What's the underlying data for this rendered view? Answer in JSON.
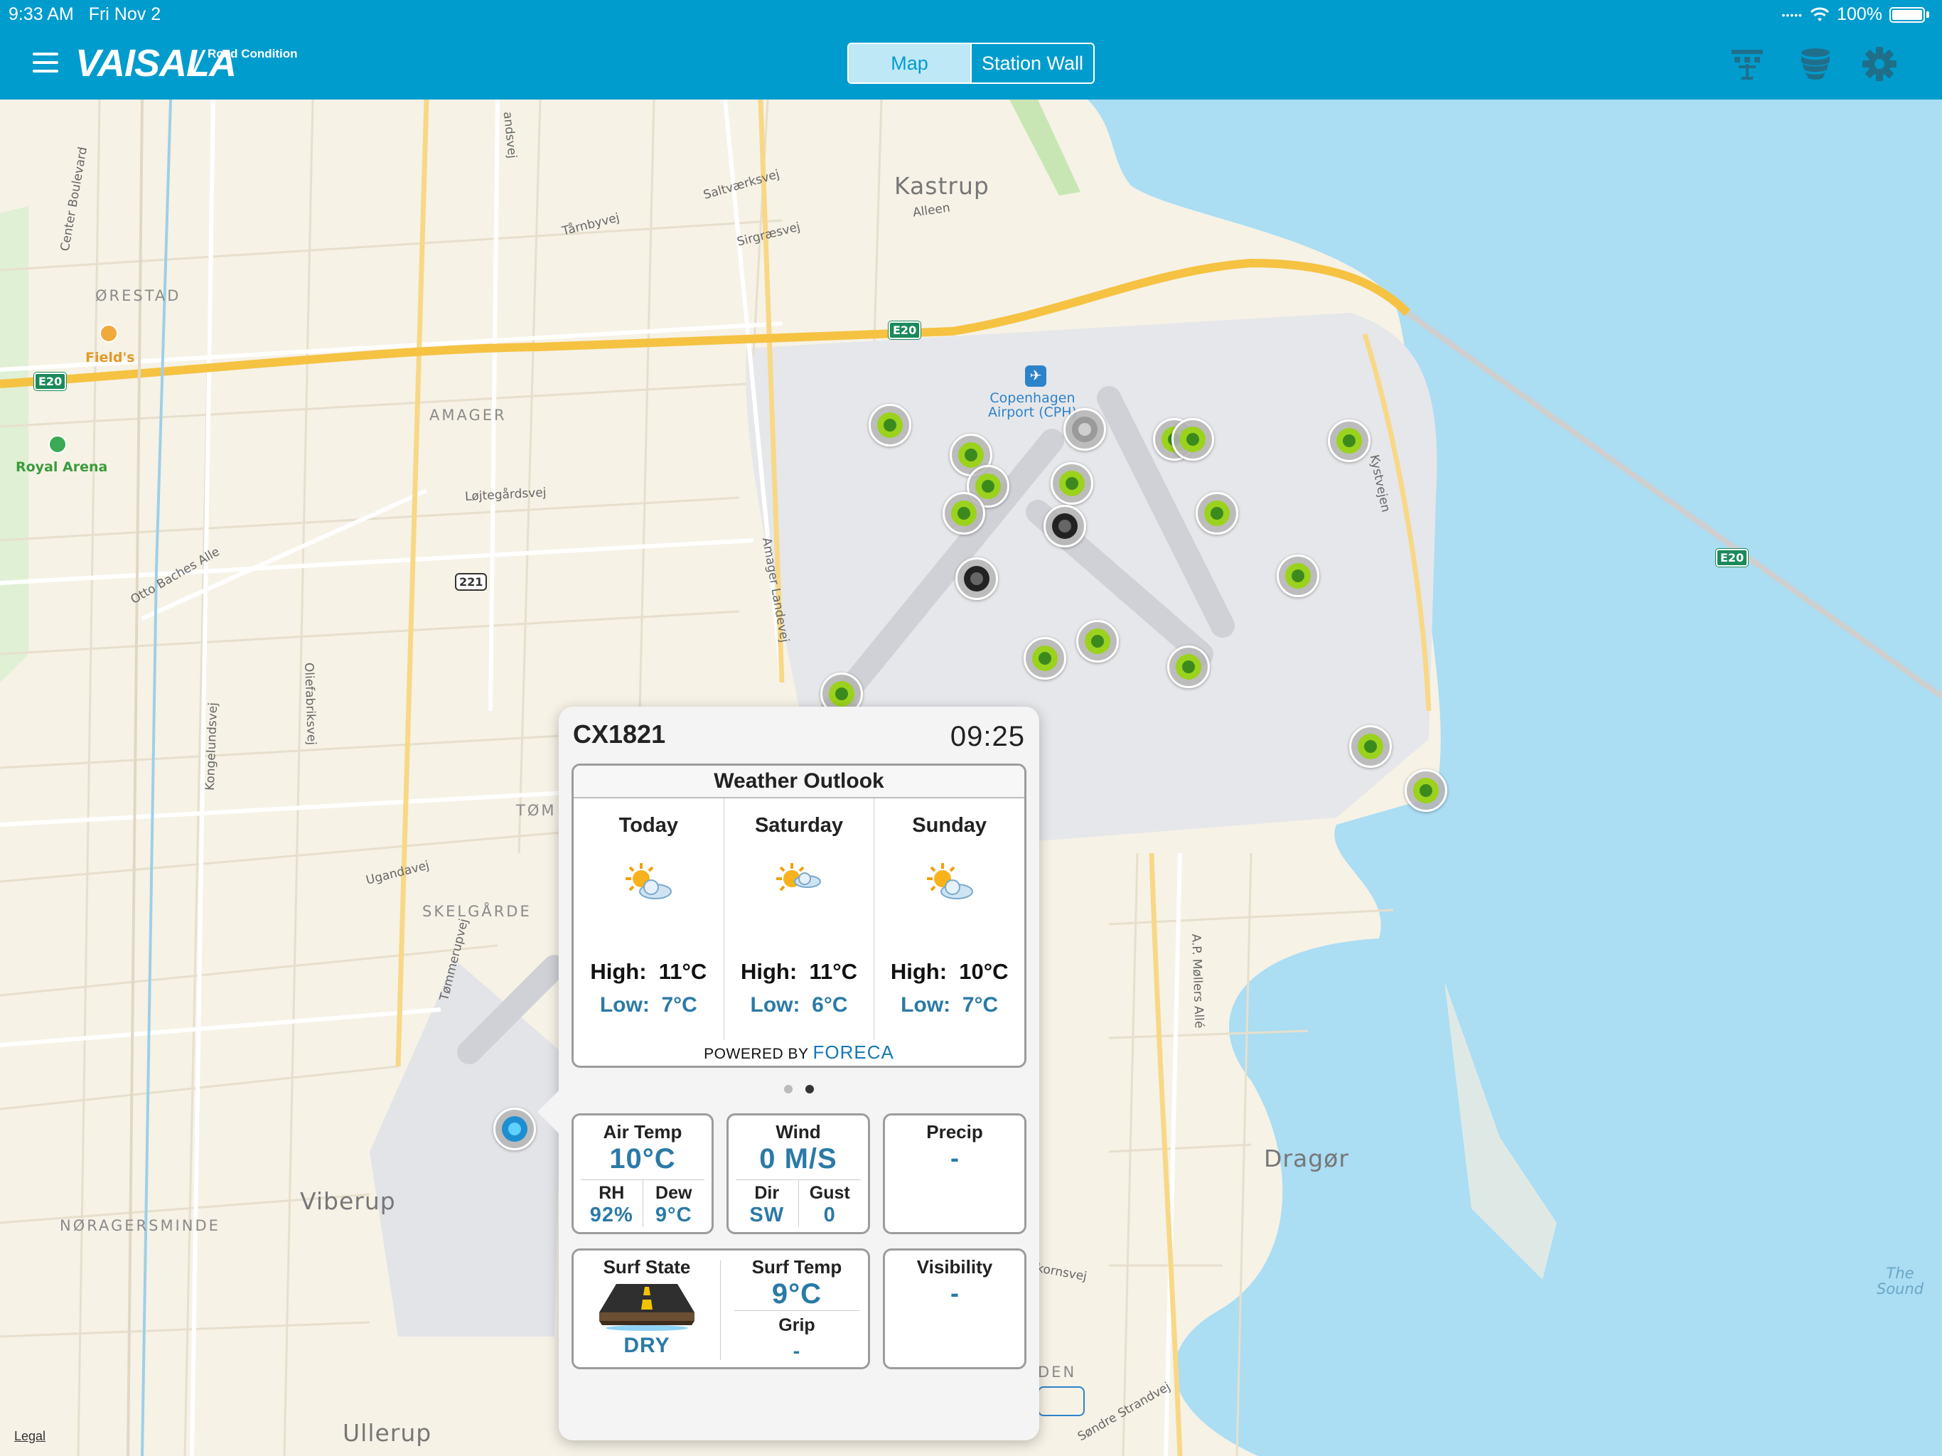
{
  "status_bar": {
    "time": "9:33 AM",
    "date": "Fri Nov 2",
    "battery": "100%"
  },
  "header": {
    "brand": "VAISALA",
    "brand_sub": "Road Condition",
    "tabs": [
      {
        "label": "Map",
        "active": true
      },
      {
        "label": "Station Wall",
        "active": false
      }
    ],
    "icons": [
      "station-network-icon",
      "database-icon",
      "settings-icon"
    ]
  },
  "map": {
    "labels": {
      "kastrup": "Kastrup",
      "alleen": "Alleen",
      "saltvaerksvej": "Saltværksvej",
      "sirgraesvej": "Sirgræsvej",
      "tarnbyvej": "Tårnbyvej",
      "orestad": "ØRESTAD",
      "fields": "Field's",
      "royal_arena": "Royal Arena",
      "amager": "AMAGER",
      "lojtegardsvej": "Løjtegårdsvej",
      "otto_baches": "Otto Baches Alle",
      "center_blvd": "Center Boulevard",
      "amager_landevej": "Amager Landevej",
      "kystvejen": "Kystvejen",
      "airport": "Copenhagen\nAirport (CPH)",
      "oliefabriksvej": "Oliefabriksvej",
      "kongelundsvej": "Kongelundsvej",
      "ugandavej": "Ugandavej",
      "skelgarde": "SKELGÅRDE",
      "tommerupvej": "Tømmerupvej",
      "tom": "TØM",
      "viberup": "Viberup",
      "noragersminde": "NØRAGERSMINDE",
      "ullerup": "Ullerup",
      "dragor": "Dragør",
      "ap_mollers": "A.P. Møllers Allé",
      "the_sound": "The\nSound",
      "kornsvej": "kornsvej",
      "sondre_strandvej": "Søndre Strandvej",
      "den": "DEN",
      "landsvej": "andsvej"
    },
    "shields": {
      "e20_west": "E20",
      "e20_center": "E20",
      "e20_east": "E20",
      "r221": "221"
    },
    "legal": "Legal"
  },
  "popup": {
    "station_id": "CX1821",
    "time": "09:25",
    "outlook": {
      "title": "Weather Outlook",
      "days": [
        {
          "name": "Today",
          "high_label": "High:",
          "high": "11°C",
          "low_label": "Low:",
          "low": "7°C",
          "icon": "partly-cloudy-icon"
        },
        {
          "name": "Saturday",
          "high_label": "High:",
          "high": "11°C",
          "low_label": "Low:",
          "low": "6°C",
          "icon": "partly-cloudy-icon"
        },
        {
          "name": "Sunday",
          "high_label": "High:",
          "high": "10°C",
          "low_label": "Low:",
          "low": "7°C",
          "icon": "partly-cloudy-icon"
        }
      ],
      "powered_by": "POWERED BY",
      "provider": "FORECA"
    },
    "page_indicator": {
      "pages": 2,
      "current": 2
    },
    "air_temp": {
      "title": "Air Temp",
      "value": "10°C",
      "rh_label": "RH",
      "rh": "92%",
      "dew_label": "Dew",
      "dew": "9°C"
    },
    "wind": {
      "title": "Wind",
      "value": "0 M/S",
      "dir_label": "Dir",
      "dir": "SW",
      "gust_label": "Gust",
      "gust": "0"
    },
    "precip": {
      "title": "Precip",
      "value": "-"
    },
    "surface": {
      "state_title": "Surf State",
      "state": "DRY",
      "temp_title": "Surf Temp",
      "temp": "9°C",
      "grip_label": "Grip",
      "grip": "-"
    },
    "visibility": {
      "title": "Visibility",
      "value": "-"
    }
  },
  "colors": {
    "header_bg": "#009ccd",
    "station_ok": "#9bd21c",
    "station_offline": "#222222",
    "station_gray": "#9a9a9a",
    "station_selected": "#1d8fd1",
    "value_blue": "#2b7aa6"
  }
}
